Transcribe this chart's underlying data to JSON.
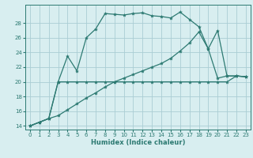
{
  "xlabel": "Humidex (Indice chaleur)",
  "bg_color": "#d8eef0",
  "grid_color": "#aacdd4",
  "line_color": "#2d7a72",
  "xlim": [
    -0.5,
    23.5
  ],
  "ylim": [
    13.5,
    30.5
  ],
  "yticks": [
    14,
    16,
    18,
    20,
    22,
    24,
    26,
    28
  ],
  "xticks": [
    0,
    1,
    2,
    3,
    4,
    5,
    6,
    7,
    8,
    9,
    10,
    11,
    12,
    13,
    14,
    15,
    16,
    17,
    18,
    19,
    20,
    21,
    22,
    23
  ],
  "line1_x": [
    0,
    1,
    2,
    3,
    4,
    5,
    6,
    7,
    8,
    9,
    10,
    11,
    12,
    13,
    14,
    15,
    16,
    17,
    18,
    19,
    20,
    21,
    22,
    23
  ],
  "line1_y": [
    14,
    14.5,
    15,
    20,
    23.5,
    21.5,
    26,
    27.2,
    29.3,
    29.2,
    29.1,
    29.3,
    29.4,
    29.0,
    28.9,
    28.7,
    29.5,
    28.5,
    27.5,
    24.5,
    27.0,
    20.8,
    20.8,
    20.7
  ],
  "line2_x": [
    0,
    1,
    2,
    3,
    4,
    5,
    6,
    7,
    8,
    9,
    10,
    11,
    12,
    13,
    14,
    15,
    16,
    17,
    18,
    19,
    20,
    21,
    22,
    23
  ],
  "line2_y": [
    14,
    14.5,
    15,
    20,
    20,
    20,
    20,
    20,
    20,
    20,
    20,
    20,
    20,
    20,
    20,
    20,
    20,
    20,
    20,
    20,
    20,
    20,
    20.8,
    20.7
  ],
  "line3_x": [
    0,
    1,
    2,
    3,
    4,
    5,
    6,
    7,
    8,
    9,
    10,
    11,
    12,
    13,
    14,
    15,
    16,
    17,
    18,
    19,
    20,
    21,
    22,
    23
  ],
  "line3_y": [
    14,
    14.5,
    15,
    15.4,
    16.2,
    17.0,
    17.8,
    18.5,
    19.3,
    20.0,
    20.5,
    21.0,
    21.5,
    22.0,
    22.5,
    23.2,
    24.2,
    25.3,
    26.8,
    24.5,
    20.5,
    20.8,
    20.8,
    20.7
  ]
}
